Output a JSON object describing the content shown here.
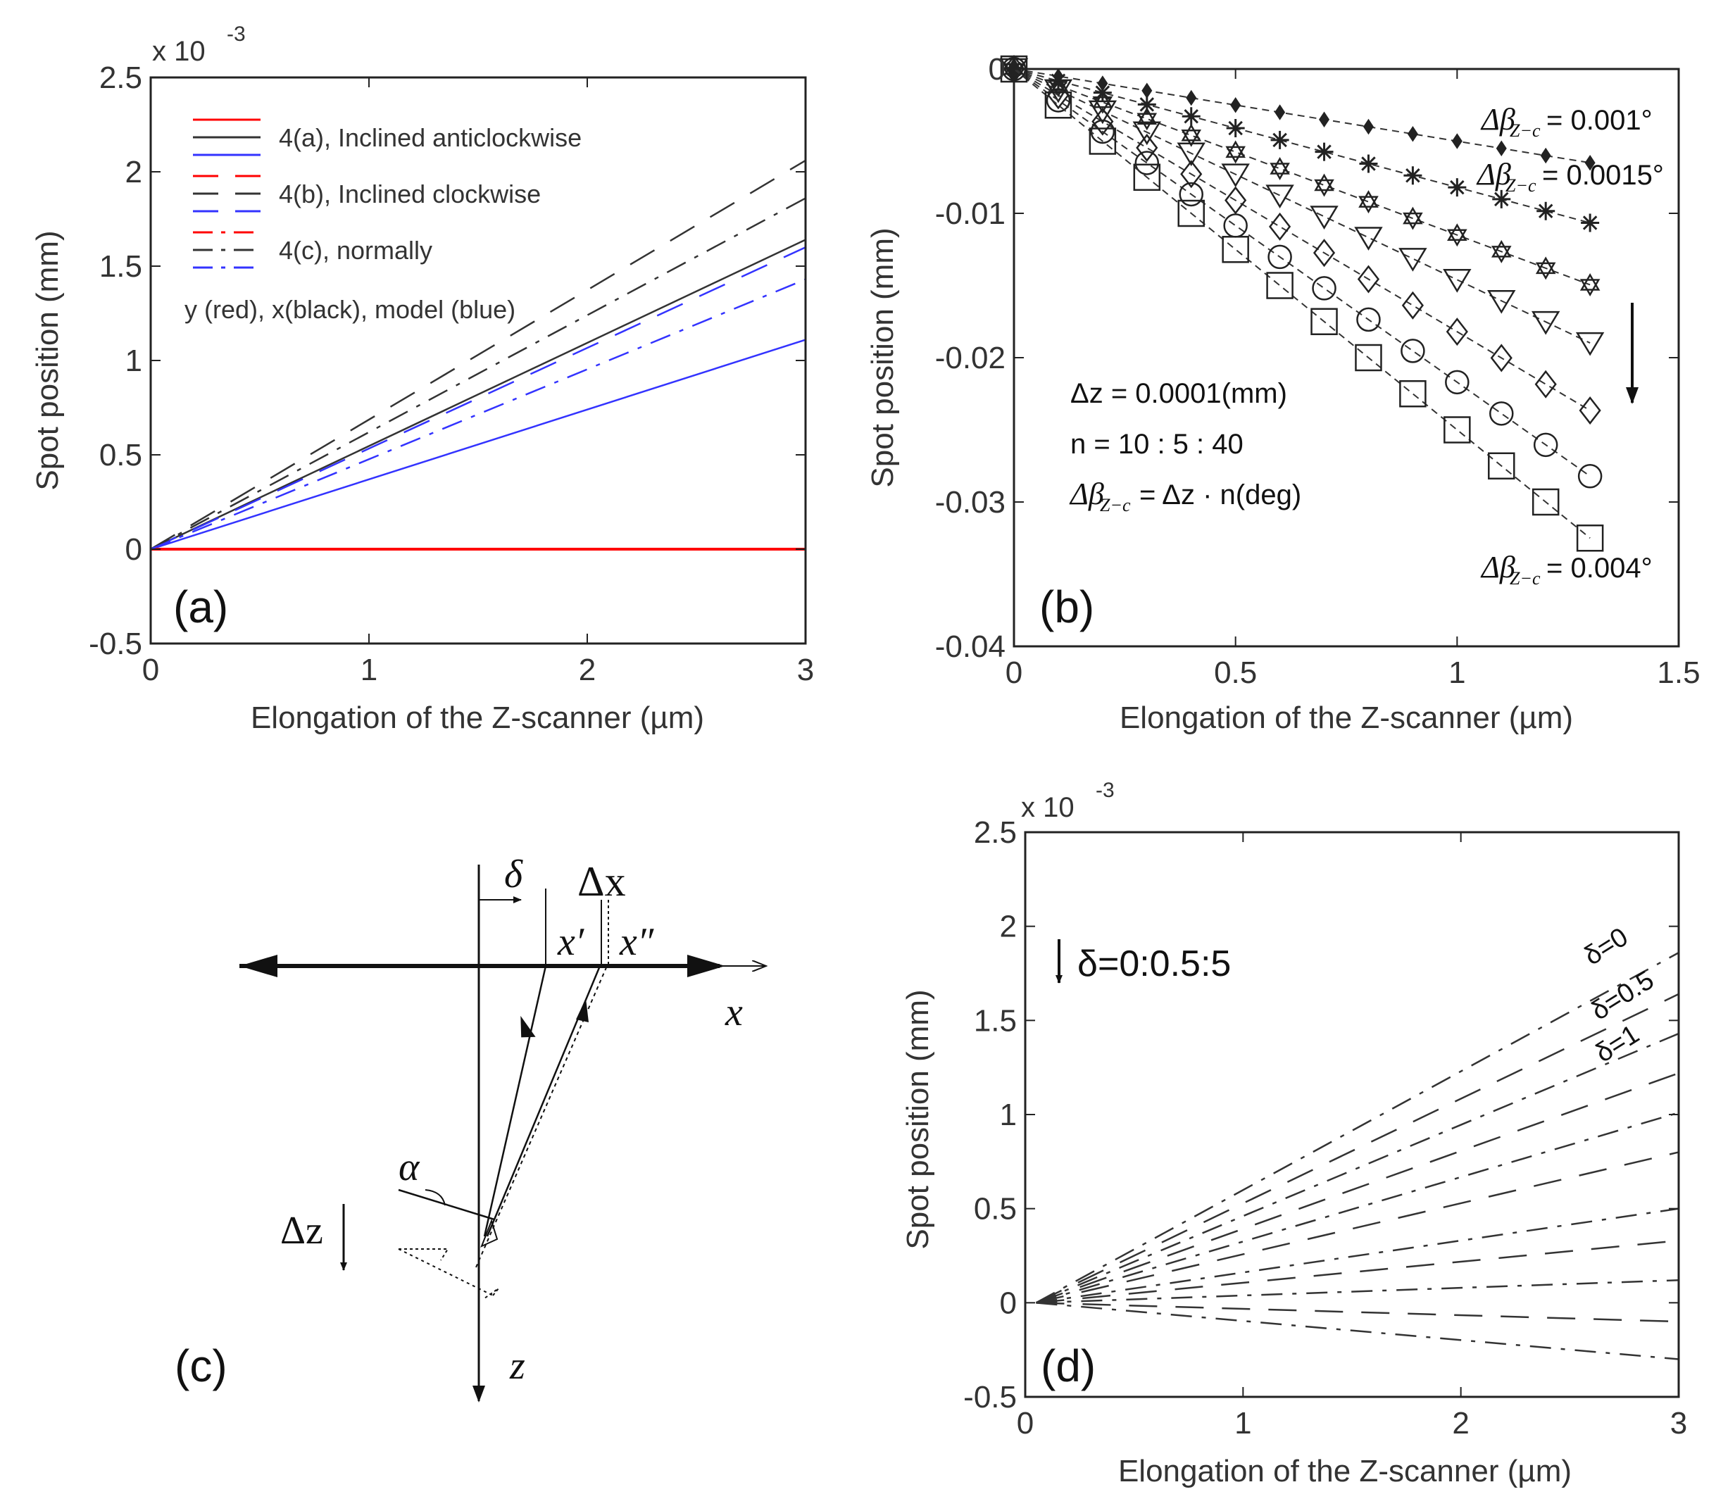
{
  "chart_data": [
    {
      "id": "a",
      "type": "line",
      "panel_label": "(a)",
      "xlabel": "Elongation of the Z-scanner (µm)",
      "ylabel": "Spot position (mm)",
      "exponent_label": "x 10",
      "exponent_power": "-3",
      "xlim": [
        0,
        3
      ],
      "ylim": [
        -0.5,
        2.5
      ],
      "xticks": [
        "0",
        "1",
        "2",
        "3"
      ],
      "yticks": [
        "-0.5",
        "0",
        "0.5",
        "1",
        "1.5",
        "2",
        "2.5"
      ],
      "legend": [
        {
          "label": "4(a), Inclined anticlockwise",
          "style": "solid"
        },
        {
          "label": "4(b), Inclined clockwise",
          "style": "dash"
        },
        {
          "label": "4(c), normally",
          "style": "dashdot"
        }
      ],
      "legend_note": "y (red), x(black), model (blue)",
      "colors": {
        "y": "#ff0000",
        "x": "#333333",
        "model": "#3333ff"
      },
      "series": [
        {
          "name": "4(a) x (black)",
          "color": "#333333",
          "style": "solid",
          "x": [
            0,
            3
          ],
          "y": [
            0,
            1.64
          ]
        },
        {
          "name": "4(a) model (blue)",
          "color": "#3333ff",
          "style": "solid",
          "x": [
            0,
            3
          ],
          "y": [
            0,
            1.11
          ]
        },
        {
          "name": "4(a) y (red)",
          "color": "#ff0000",
          "style": "solid",
          "x": [
            0,
            3
          ],
          "y": [
            0,
            0
          ]
        },
        {
          "name": "4(b) x (black)",
          "color": "#333333",
          "style": "dash",
          "x": [
            0,
            3
          ],
          "y": [
            0,
            2.06
          ]
        },
        {
          "name": "4(b) model (blue)",
          "color": "#3333ff",
          "style": "dash",
          "x": [
            0,
            3
          ],
          "y": [
            0,
            1.6
          ]
        },
        {
          "name": "4(b) y (red)",
          "color": "#ff0000",
          "style": "dash",
          "x": [
            1.3,
            3
          ],
          "y": [
            0,
            0
          ]
        },
        {
          "name": "4(c) x (black)",
          "color": "#333333",
          "style": "dashdot",
          "x": [
            0,
            3
          ],
          "y": [
            0,
            1.86
          ]
        },
        {
          "name": "4(c) model (blue)",
          "color": "#3333ff",
          "style": "dashdot",
          "x": [
            0,
            3
          ],
          "y": [
            0,
            1.43
          ]
        },
        {
          "name": "4(c) y (red)",
          "color": "#ff0000",
          "style": "dashdot",
          "x": [
            1.3,
            3
          ],
          "y": [
            0,
            0
          ]
        }
      ]
    },
    {
      "id": "b",
      "type": "scatter",
      "panel_label": "(b)",
      "xlabel": "Elongation of the Z-scanner (µm)",
      "ylabel": "Spot position (mm)",
      "xlim": [
        0,
        1.5
      ],
      "ylim": [
        -0.04,
        0
      ],
      "xticks": [
        "0",
        "0.5",
        "1",
        "1.5"
      ],
      "yticks": [
        "-0.04",
        "-0.03",
        "-0.02",
        "-0.01",
        "0"
      ],
      "x": [
        0,
        0.1,
        0.2,
        0.3,
        0.4,
        0.5,
        0.6,
        0.7,
        0.8,
        0.9,
        1.0,
        1.1,
        1.2,
        1.3
      ],
      "series": [
        {
          "name": "n=10",
          "marker": "dot",
          "slope": -0.005
        },
        {
          "name": "n=15",
          "marker": "star",
          "slope": -0.0082
        },
        {
          "name": "n=20",
          "marker": "hexagram",
          "slope": -0.0115
        },
        {
          "name": "n=25",
          "marker": "triangle-down",
          "slope": -0.0146
        },
        {
          "name": "n=30",
          "marker": "diamond",
          "slope": -0.0182
        },
        {
          "name": "n=35",
          "marker": "circle",
          "slope": -0.0217
        },
        {
          "name": "n=40",
          "marker": "square",
          "slope": -0.025
        }
      ],
      "annotations": {
        "top": "Δβ",
        "top_sub": "Z−c",
        "top_val": "= 0.001°",
        "second": "Δβ",
        "second_sub": "Z−c",
        "second_val": "= 0.0015°",
        "bottom": "Δβ",
        "bottom_sub": "Z−c",
        "bottom_val": "= 0.004°",
        "dz_line": "Δz = 0.0001(mm)",
        "n_line": "n = 10 : 5 : 40",
        "beta_line_a": "Δβ",
        "beta_line_sub": "Z−c",
        "beta_line_b": "= Δz · n(deg)"
      }
    },
    {
      "id": "d",
      "type": "line",
      "panel_label": "(d)",
      "xlabel": "Elongation of the Z-scanner (µm)",
      "ylabel": "Spot position (mm)",
      "exponent_label": "x 10",
      "exponent_power": "-3",
      "xlim": [
        0,
        3
      ],
      "ylim": [
        -0.5,
        2.5
      ],
      "xticks": [
        "0",
        "1",
        "2",
        "3"
      ],
      "yticks": [
        "-0.5",
        "0",
        "0.5",
        "1",
        "1.5",
        "2",
        "2.5"
      ],
      "delta_note": "δ=0:0.5:5",
      "series_labels": [
        "δ=0",
        "δ=0.5",
        "δ=1"
      ],
      "end_values": [
        1.86,
        1.64,
        1.43,
        1.22,
        1.01,
        0.8,
        0.5,
        0.33,
        0.12,
        -0.1,
        -0.3
      ]
    }
  ],
  "diagram_c": {
    "panel_label": "(c)",
    "labels": {
      "delta": "δ",
      "delta_x": "Δx",
      "x_prime": "x′",
      "x_dprime": "x″",
      "x_axis": "x",
      "z_axis": "z",
      "alpha": "α",
      "delta_z": "Δz"
    }
  }
}
